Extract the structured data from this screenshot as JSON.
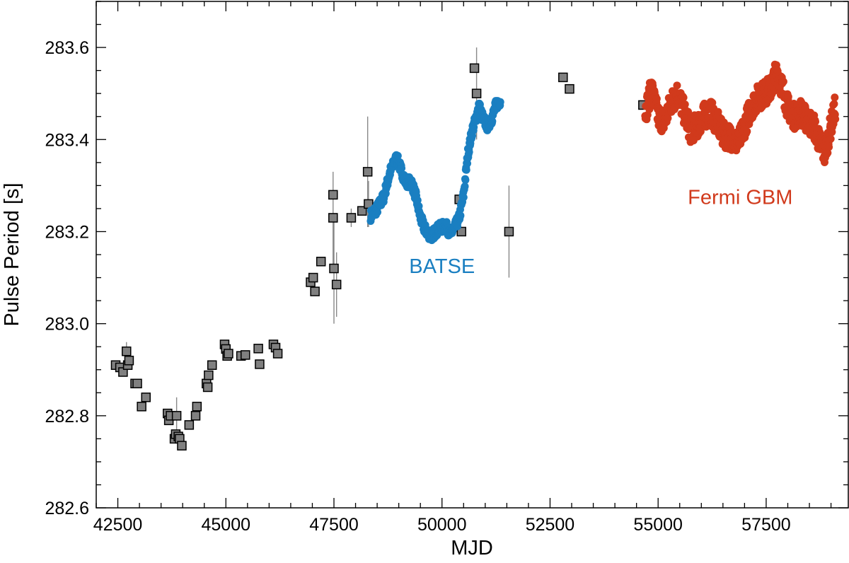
{
  "chart_data": {
    "type": "scatter",
    "title": "",
    "xlabel": "MJD",
    "ylabel": "Pulse Period [s]",
    "xlim": [
      42000,
      59400
    ],
    "ylim": [
      282.6,
      283.7
    ],
    "x_ticks": [
      42500,
      45000,
      47500,
      50000,
      52500,
      55000,
      57500
    ],
    "x_tick_labels": [
      "42500",
      "45000",
      "47500",
      "50000",
      "52500",
      "55000",
      "57500"
    ],
    "y_ticks": [
      282.6,
      282.8,
      283.0,
      283.2,
      283.4,
      283.6
    ],
    "y_tick_labels": [
      "282.6",
      "282.8",
      "283.0",
      "283.2",
      "283.4",
      "283.6"
    ],
    "grid": false,
    "annotations": [
      {
        "text": "BATSE",
        "x": 50000,
        "y": 283.11,
        "color": "#1a7fc1"
      },
      {
        "text": "Fermi GBM",
        "x": 56900,
        "y": 283.26,
        "color": "#d13a1c"
      }
    ],
    "series": [
      {
        "marker": "square",
        "color": "#808080",
        "points": [
          [
            42450,
            282.91,
            0
          ],
          [
            42550,
            282.905,
            0
          ],
          [
            42620,
            282.895,
            0
          ],
          [
            42700,
            282.94,
            0.02
          ],
          [
            42730,
            282.91,
            0
          ],
          [
            42760,
            282.92,
            0
          ],
          [
            42900,
            282.87,
            0
          ],
          [
            42950,
            282.87,
            0
          ],
          [
            43050,
            282.82,
            0
          ],
          [
            43150,
            282.84,
            0
          ],
          [
            43650,
            282.805,
            0
          ],
          [
            43680,
            282.79,
            0
          ],
          [
            43720,
            282.8,
            0
          ],
          [
            43810,
            282.75,
            0
          ],
          [
            43840,
            282.76,
            0
          ],
          [
            43860,
            282.8,
            0.04
          ],
          [
            43900,
            282.755,
            0
          ],
          [
            43930,
            282.75,
            0
          ],
          [
            43980,
            282.735,
            0
          ],
          [
            44150,
            282.78,
            0
          ],
          [
            44300,
            282.8,
            0
          ],
          [
            44330,
            282.82,
            0
          ],
          [
            44550,
            282.87,
            0
          ],
          [
            44580,
            282.862,
            0
          ],
          [
            44600,
            282.888,
            0
          ],
          [
            44680,
            282.91,
            0
          ],
          [
            44970,
            282.955,
            0
          ],
          [
            45000,
            282.945,
            0
          ],
          [
            45030,
            282.93,
            0
          ],
          [
            45060,
            282.935,
            0
          ],
          [
            45350,
            282.93,
            0
          ],
          [
            45450,
            282.932,
            0
          ],
          [
            45750,
            282.946,
            0
          ],
          [
            45780,
            282.912,
            0
          ],
          [
            46100,
            282.955,
            0
          ],
          [
            46150,
            282.948,
            0
          ],
          [
            46200,
            282.935,
            0
          ],
          [
            46960,
            283.09,
            0
          ],
          [
            47020,
            283.1,
            0
          ],
          [
            47060,
            283.07,
            0
          ],
          [
            47200,
            283.135,
            0
          ],
          [
            47480,
            283.28,
            0
          ],
          [
            47480,
            283.23,
            0.1
          ],
          [
            47500,
            283.12,
            0.12
          ],
          [
            47560,
            283.085,
            0.07
          ],
          [
            47900,
            283.23,
            0.02
          ],
          [
            48150,
            283.245,
            0
          ],
          [
            48280,
            283.33,
            0.12
          ],
          [
            48300,
            283.26,
            0.05
          ],
          [
            50450,
            283.2,
            0
          ],
          [
            50400,
            283.27,
            0
          ],
          [
            50750,
            283.555,
            0
          ],
          [
            50800,
            283.5,
            0.1
          ],
          [
            51550,
            283.2,
            0.1
          ],
          [
            52800,
            283.535,
            0
          ],
          [
            52950,
            283.51,
            0
          ],
          [
            54650,
            283.475,
            0
          ]
        ]
      },
      {
        "name": "BATSE",
        "marker": "circle",
        "color": "#1a7fc1",
        "path": [
          [
            48350,
            283.235
          ],
          [
            48500,
            283.25
          ],
          [
            48650,
            283.275
          ],
          [
            48800,
            283.33
          ],
          [
            48950,
            283.36
          ],
          [
            49050,
            283.335
          ],
          [
            49150,
            283.31
          ],
          [
            49300,
            283.305
          ],
          [
            49400,
            283.275
          ],
          [
            49500,
            283.23
          ],
          [
            49600,
            283.205
          ],
          [
            49750,
            283.19
          ],
          [
            49900,
            283.205
          ],
          [
            50000,
            283.21
          ],
          [
            50100,
            283.21
          ],
          [
            50200,
            283.195
          ],
          [
            50300,
            283.21
          ],
          [
            50400,
            283.23
          ],
          [
            50500,
            283.28
          ],
          [
            50600,
            283.37
          ],
          [
            50700,
            283.42
          ],
          [
            50800,
            283.45
          ],
          [
            50850,
            283.475
          ],
          [
            50950,
            283.445
          ],
          [
            51050,
            283.43
          ],
          [
            51150,
            283.445
          ],
          [
            51250,
            283.475
          ],
          [
            51350,
            283.485
          ]
        ]
      },
      {
        "name": "Fermi GBM",
        "marker": "circle",
        "color": "#d13a1c",
        "path": [
          [
            54700,
            283.46
          ],
          [
            54850,
            283.51
          ],
          [
            55000,
            283.45
          ],
          [
            55150,
            283.44
          ],
          [
            55300,
            283.48
          ],
          [
            55450,
            283.5
          ],
          [
            55600,
            283.46
          ],
          [
            55750,
            283.42
          ],
          [
            55900,
            283.43
          ],
          [
            56050,
            283.45
          ],
          [
            56200,
            283.46
          ],
          [
            56350,
            283.44
          ],
          [
            56500,
            283.41
          ],
          [
            56700,
            283.405
          ],
          [
            56850,
            283.39
          ],
          [
            57000,
            283.43
          ],
          [
            57150,
            283.47
          ],
          [
            57300,
            283.49
          ],
          [
            57450,
            283.5
          ],
          [
            57600,
            283.51
          ],
          [
            57750,
            283.55
          ],
          [
            57850,
            283.52
          ],
          [
            58000,
            283.47
          ],
          [
            58150,
            283.45
          ],
          [
            58300,
            283.46
          ],
          [
            58450,
            283.44
          ],
          [
            58600,
            283.43
          ],
          [
            58750,
            283.39
          ],
          [
            58850,
            283.37
          ],
          [
            58950,
            283.41
          ],
          [
            59100,
            283.47
          ]
        ]
      }
    ]
  }
}
